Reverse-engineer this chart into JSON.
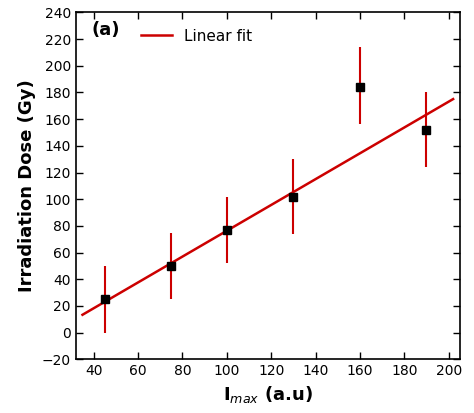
{
  "x": [
    45,
    75,
    100,
    130,
    160,
    190
  ],
  "y": [
    25,
    50,
    77,
    102,
    184,
    152
  ],
  "yerr_upper": [
    25,
    25,
    25,
    28,
    30,
    28
  ],
  "yerr_lower": [
    25,
    25,
    25,
    28,
    28,
    28
  ],
  "line_fit_x": [
    35,
    202
  ],
  "line_fit_slope": 0.968,
  "line_fit_intercept": -20.5,
  "xlabel": "I$_{max}$ (a.u)",
  "ylabel": "Irradiation Dose (Gy)",
  "xlim": [
    32,
    205
  ],
  "ylim": [
    -20,
    240
  ],
  "xticks": [
    40,
    60,
    80,
    100,
    120,
    140,
    160,
    180,
    200
  ],
  "yticks": [
    -20,
    0,
    20,
    40,
    60,
    80,
    100,
    120,
    140,
    160,
    180,
    200,
    220,
    240
  ],
  "marker_color": "black",
  "marker_size": 6,
  "line_color": "#cc0000",
  "error_color": "#cc0000",
  "label_text": "(a)",
  "legend_label": "Linear fit",
  "background_color": "#ffffff"
}
